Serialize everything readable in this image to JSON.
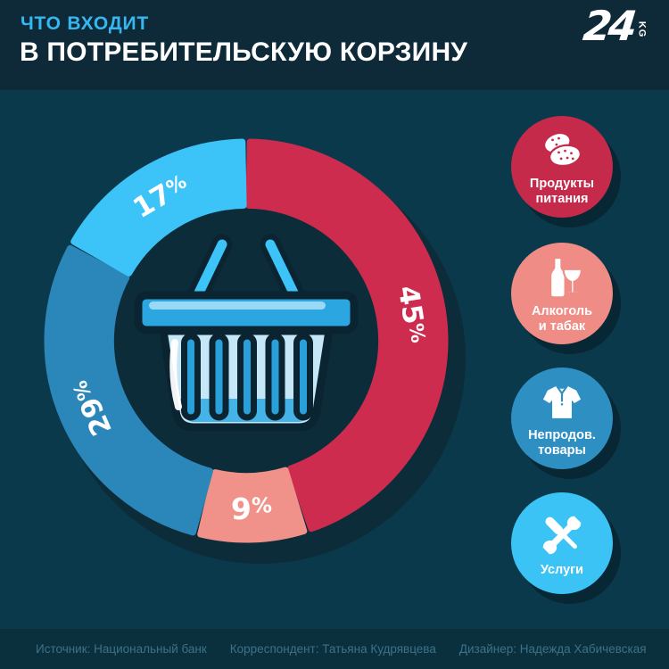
{
  "colors": {
    "page_bg": "#0a394b",
    "header_bg": "#0e2937",
    "footer_bg": "#0a303e",
    "donut_shadow": "#0d2c3a",
    "accent_blue": "#35b8f1",
    "footer_text": "#3e7187",
    "label_text": "#ffffff"
  },
  "header": {
    "kicker": "ЧТО ВХОДИТ",
    "title": "В ПОТРЕБИТЕЛЬСКУЮ КОРЗИНУ",
    "logo_number": "24",
    "logo_suffix": "KG"
  },
  "chart_data": {
    "type": "donut",
    "title": "Что входит в потребительскую корзину",
    "unit": "%",
    "direction": "clockwise",
    "start_angle_deg": 0,
    "inner_radius_ratio": 0.68,
    "center_icon": "shopping-basket",
    "categories": [
      "Продукты питания",
      "Алкоголь и табак",
      "Непродовольственные товары",
      "Услуги"
    ],
    "values": [
      45,
      9,
      29,
      17
    ],
    "segments": [
      {
        "label": "Продукты питания",
        "value": 45,
        "display": "45%",
        "color": "#cd2c4e"
      },
      {
        "label": "Алкоголь и табак",
        "value": 9,
        "display": "9%",
        "color": "#f0918a",
        "label_horizontal": true
      },
      {
        "label": "Непродовольственные товары",
        "value": 29,
        "display": "29%",
        "color": "#2b86b9"
      },
      {
        "label": "Услуги",
        "value": 17,
        "display": "17%",
        "color": "#3cc3f8"
      }
    ]
  },
  "legend": [
    {
      "lines": [
        "Продукты",
        "питания"
      ],
      "color": "#c52a4b",
      "icon": "food-icon"
    },
    {
      "lines": [
        "Алкоголь",
        "и табак"
      ],
      "color": "#ef8c85",
      "icon": "alcohol-icon"
    },
    {
      "lines": [
        "Непродов.",
        "товары"
      ],
      "color": "#2e8fc2",
      "icon": "clothes-icon"
    },
    {
      "lines": [
        "Услуги"
      ],
      "color": "#3cc3f5",
      "icon": "services-icon"
    }
  ],
  "footer": {
    "items": [
      "Источник: Национальный банк",
      "Корреспондент: Татьяна Кудрявцева",
      "Дизайнер: Надежда Хабичевская"
    ]
  }
}
